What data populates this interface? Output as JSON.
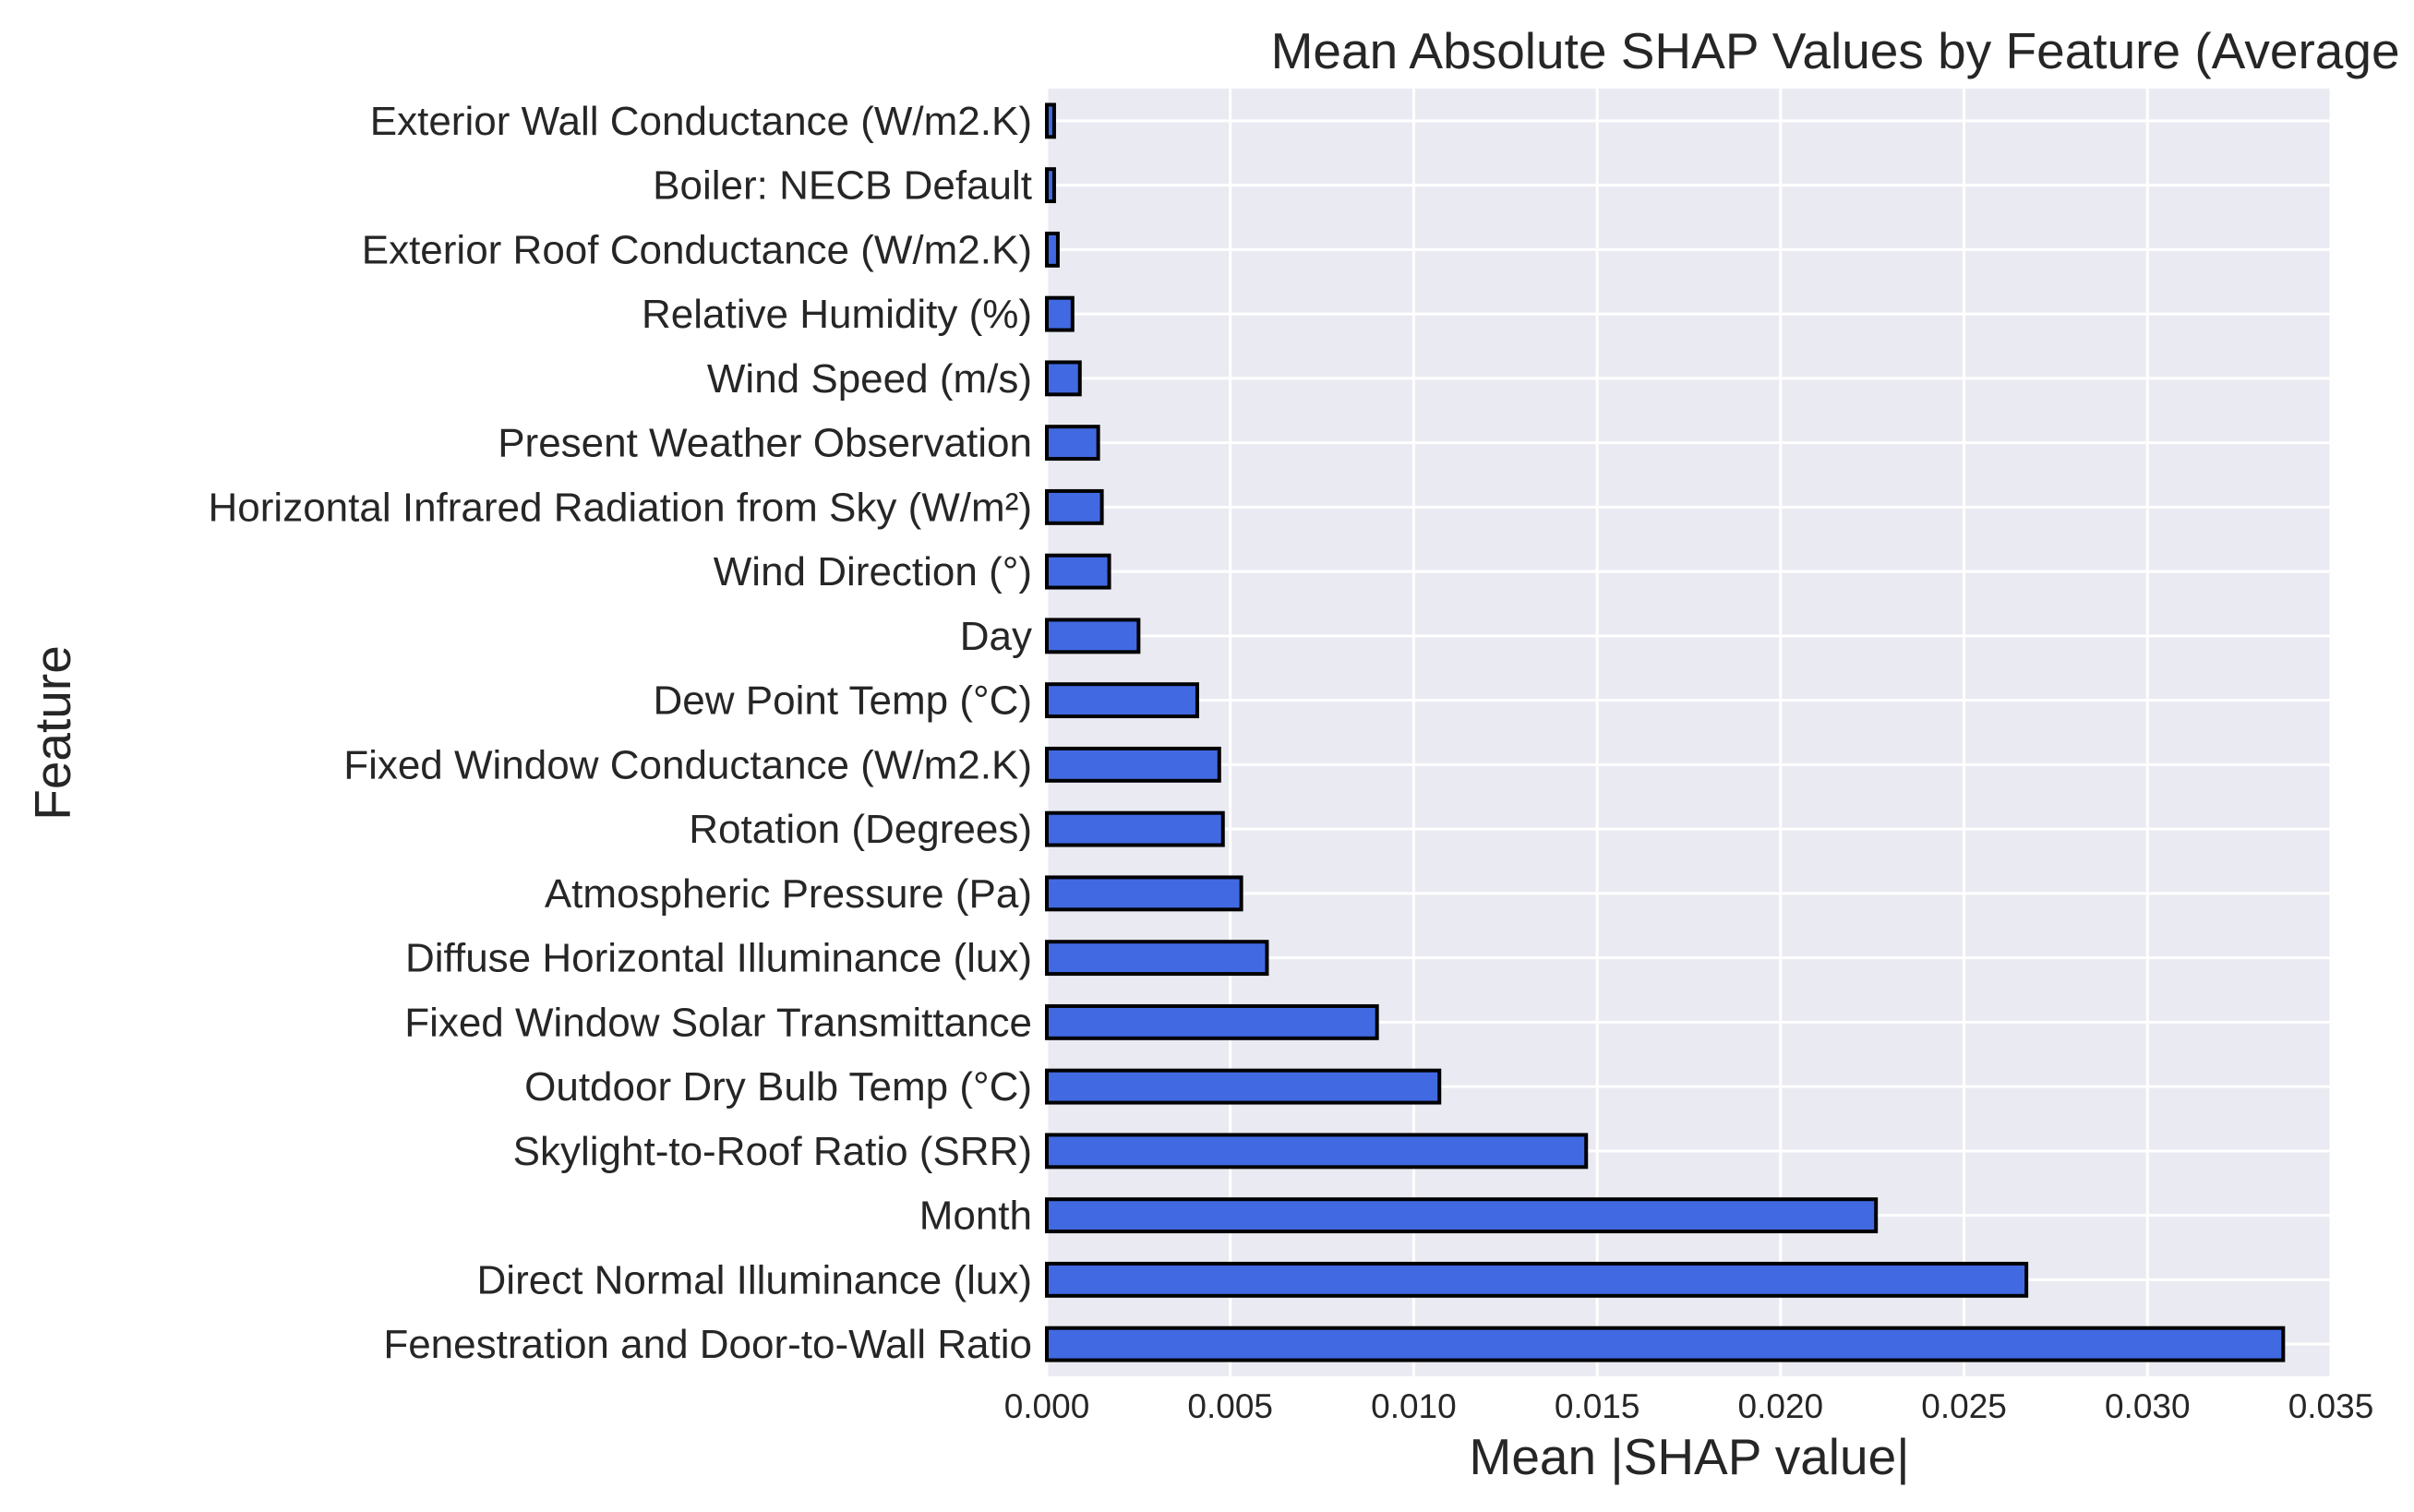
{
  "chart_data": {
    "type": "bar",
    "orientation": "horizontal",
    "title": "Mean Absolute SHAP Values by Feature (Average Energy)",
    "xlabel": "Mean |SHAP value|",
    "ylabel": "Feature",
    "xlim": [
      0,
      0.035
    ],
    "xticks": [
      "0.000",
      "0.005",
      "0.010",
      "0.015",
      "0.020",
      "0.025",
      "0.030",
      "0.035"
    ],
    "grid": true,
    "colors": {
      "bar": "#4169e1",
      "edge": "#000000",
      "background": "#eaeaf2"
    },
    "categories": [
      "Exterior Wall Conductance (W/m2.K)",
      "Boiler: NECB Default",
      "Exterior Roof Conductance (W/m2.K)",
      "Relative Humidity (%)",
      "Wind Speed (m/s)",
      "Present Weather Observation",
      "Horizontal Infrared Radiation from Sky (W/m²)",
      "Wind Direction (°)",
      "Day",
      "Dew Point Temp (°C)",
      "Fixed Window Conductance (W/m2.K)",
      "Rotation (Degrees)",
      "Atmospheric Pressure (Pa)",
      "Diffuse Horizontal Illuminance (lux)",
      "Fixed Window Solar Transmittance",
      "Outdoor Dry Bulb Temp (°C)",
      "Skylight-to-Roof Ratio (SRR)",
      "Month",
      "Direct Normal Illuminance (lux)",
      "Fenestration and Door-to-Wall Ratio"
    ],
    "values": [
      0.0002,
      0.0002,
      0.0003,
      0.0007,
      0.0009,
      0.0014,
      0.0015,
      0.0017,
      0.0025,
      0.0041,
      0.0047,
      0.0048,
      0.0053,
      0.006,
      0.009,
      0.0107,
      0.0147,
      0.0226,
      0.0267,
      0.0337
    ]
  }
}
